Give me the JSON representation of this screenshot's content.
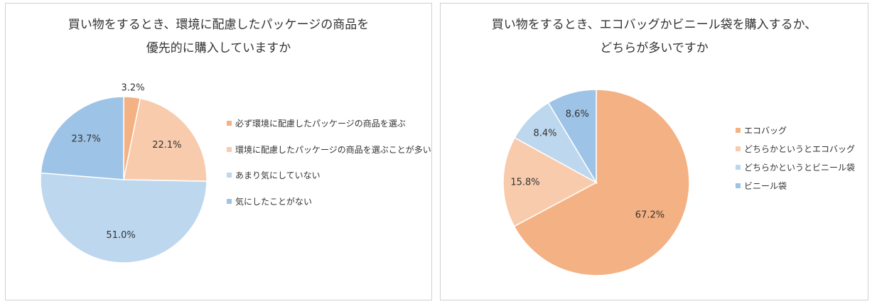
{
  "chart_data": [
    {
      "type": "pie",
      "title_lines": [
        "買い物をするとき、環境に配慮したパッケージの商品を",
        "優先的に購入していますか"
      ],
      "categories": [
        "必ず環境に配慮したパッケージの商品を選ぶ",
        "環境に配慮したパッケージの商品を選ぶことが多い",
        "あまり気にしていない",
        "気にしたことがない"
      ],
      "values": [
        3.2,
        22.1,
        51.0,
        23.7
      ],
      "labels": [
        "3.2%",
        "22.1%",
        "51.0%",
        "23.7%"
      ],
      "colors": [
        "#f4b183",
        "#f8cbad",
        "#bdd7ee",
        "#9dc3e6"
      ],
      "legend_position": "right"
    },
    {
      "type": "pie",
      "title_lines": [
        "買い物をするとき、エコバッグかビニール袋を購入するか、",
        "どちらが多いですか"
      ],
      "categories": [
        "エコバッグ",
        "どちらかというとエコバッグ",
        "どちらかというとビニール袋",
        "ビニール袋"
      ],
      "values": [
        67.2,
        15.8,
        8.4,
        8.6
      ],
      "labels": [
        "67.2%",
        "15.8%",
        "8.4%",
        "8.6%"
      ],
      "colors": [
        "#f4b183",
        "#f8cbad",
        "#bdd7ee",
        "#9dc3e6"
      ],
      "legend_position": "right"
    }
  ]
}
